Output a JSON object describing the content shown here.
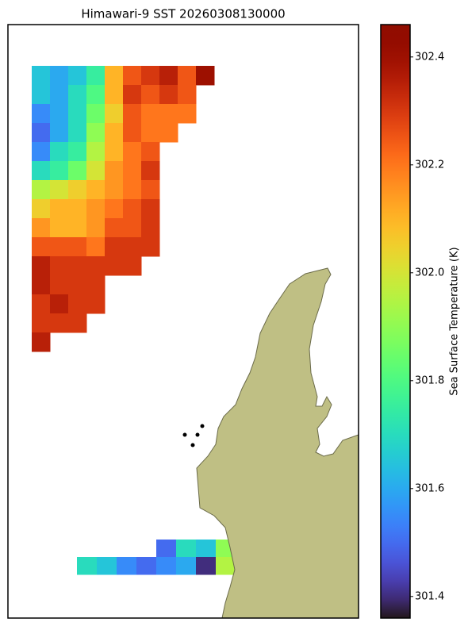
{
  "chart_data": {
    "type": "heatmap_map",
    "title": "Himawari-9 SST 20260308130000",
    "colorbar_label": "Sea Surface Temperature (K)",
    "colormap": "turbo",
    "clim": [
      301.36,
      302.46
    ],
    "cticks": [
      301.4,
      301.6,
      301.8,
      {
        "value": 302.0,
        "label": "302.0"
      },
      302.2,
      302.4
    ],
    "grids": [
      {
        "rows": [
          [
            301.65,
            301.6,
            301.65,
            301.75,
            302.1,
            302.25,
            302.3,
            302.35,
            302.25,
            302.4
          ],
          [
            301.65,
            301.6,
            301.7,
            301.8,
            302.1,
            302.3,
            302.25,
            302.3,
            302.25,
            null
          ],
          [
            301.55,
            301.6,
            301.7,
            301.85,
            302.05,
            302.25,
            302.2,
            302.2,
            302.2,
            null
          ],
          [
            301.5,
            301.6,
            301.7,
            301.9,
            302.1,
            302.25,
            302.2,
            302.2,
            null,
            null
          ],
          [
            301.55,
            301.7,
            301.75,
            301.95,
            302.1,
            302.2,
            302.25,
            null,
            null,
            null
          ],
          [
            301.7,
            301.75,
            301.85,
            302.0,
            302.15,
            302.2,
            302.3,
            null,
            null,
            null
          ],
          [
            301.95,
            302.0,
            302.05,
            302.1,
            302.15,
            302.2,
            302.25,
            null,
            null,
            null
          ],
          [
            302.05,
            302.1,
            302.1,
            302.15,
            302.2,
            302.25,
            302.3,
            null,
            null,
            null
          ],
          [
            302.15,
            302.1,
            302.1,
            302.15,
            302.25,
            302.25,
            302.3,
            null,
            null,
            null
          ],
          [
            302.25,
            302.25,
            302.25,
            302.2,
            302.3,
            302.3,
            302.3,
            null,
            null,
            null
          ],
          [
            302.35,
            302.3,
            302.3,
            302.3,
            302.3,
            302.3,
            null,
            null,
            null,
            null
          ],
          [
            302.35,
            302.3,
            302.3,
            302.3,
            null,
            null,
            null,
            null,
            null,
            null
          ],
          [
            302.3,
            302.35,
            302.3,
            302.3,
            null,
            null,
            null,
            null,
            null,
            null
          ],
          [
            302.3,
            302.3,
            302.3,
            null,
            null,
            null,
            null,
            null,
            null,
            null
          ],
          [
            302.35,
            null,
            null,
            null,
            null,
            null,
            null,
            null,
            null,
            null
          ]
        ]
      },
      {
        "rows": [
          [
            null,
            null,
            null,
            null,
            301.5,
            301.7,
            301.65,
            301.9
          ],
          [
            301.7,
            301.65,
            301.55,
            301.5,
            301.55,
            301.6,
            301.4,
            301.95
          ]
        ]
      }
    ]
  }
}
